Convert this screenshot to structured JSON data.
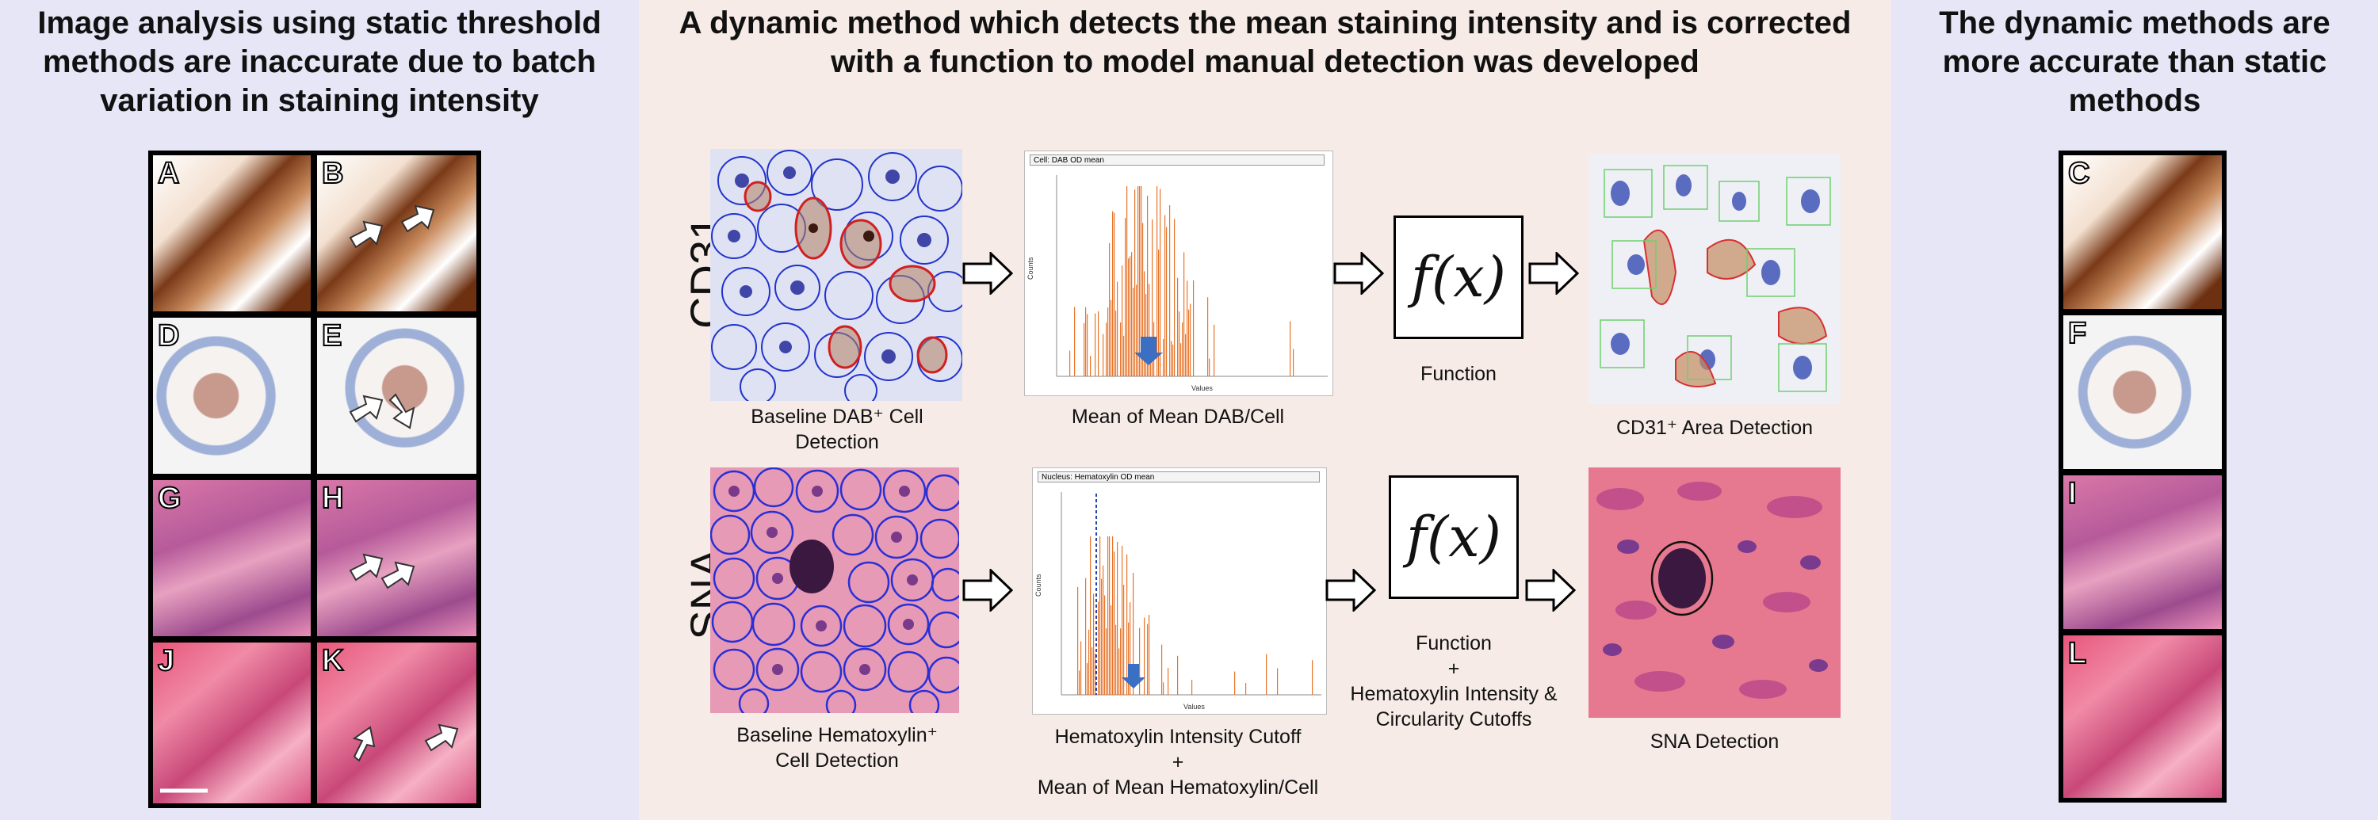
{
  "left_panel": {
    "heading": "Image analysis using static threshold methods are inaccurate due to batch variation in staining intensity",
    "tiles": [
      "A",
      "B",
      "D",
      "E",
      "G",
      "H",
      "J",
      "K"
    ]
  },
  "middle_panel": {
    "heading": "A dynamic method which detects the mean staining intensity and is corrected with a function to model manual detection was developed",
    "rows": [
      {
        "label": "CD31",
        "detection_caption": "Baseline DAB⁺ Cell\nDetection",
        "histogram_header": "Cell: DAB OD mean",
        "histogram_caption": "Mean of Mean DAB/Cell",
        "function_symbol": "f(x)",
        "function_caption": "Function",
        "result_caption": "CD31⁺ Area Detection"
      },
      {
        "label": "SNA",
        "detection_caption": "Baseline Hematoxylin⁺\nCell Detection",
        "histogram_header": "Nucleus: Hematoxylin OD mean",
        "histogram_caption": "Hematoxylin Intensity Cutoff\n+\nMean of Mean Hematoxylin/Cell",
        "function_symbol": "f(x)",
        "function_caption": "Function\n+\nHematoxylin Intensity &\nCircularity Cutoffs",
        "result_caption": "SNA Detection"
      }
    ],
    "histogram_axis": {
      "x_label": "Values",
      "y_label": "Counts"
    }
  },
  "right_panel": {
    "heading": "The dynamic methods are more accurate than static methods",
    "tiles": [
      "C",
      "F",
      "I",
      "L"
    ]
  },
  "colors": {
    "left_bg": "#e6e6f7",
    "mid_bg": "#f6ebe6",
    "bar": "#e8742a",
    "arrow_blue": "#3a6fc4"
  }
}
